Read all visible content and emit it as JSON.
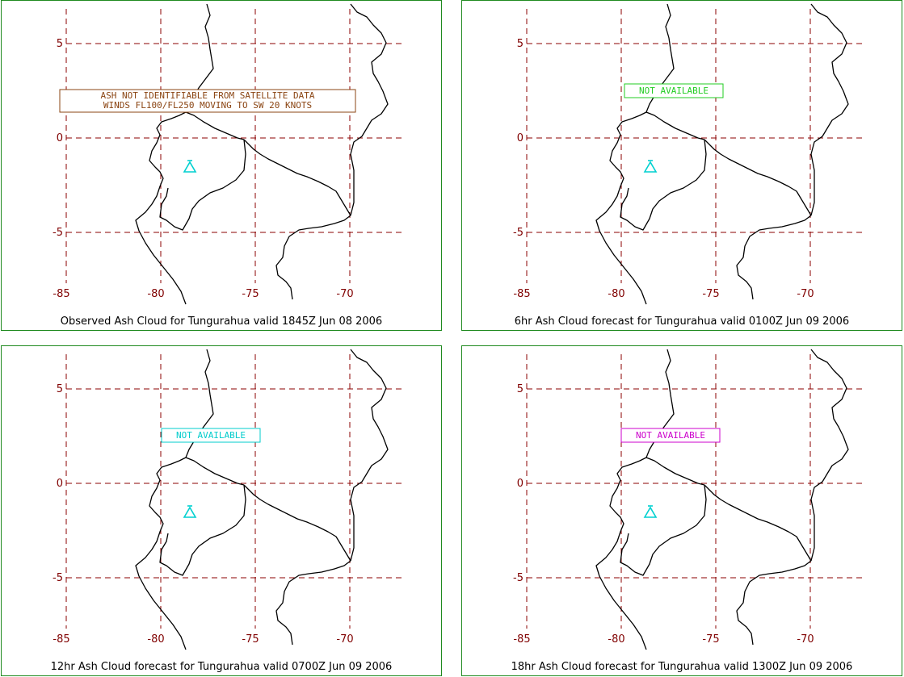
{
  "colors": {
    "grid": "#8b0000",
    "tick_label": "#800000",
    "coastline": "#000000",
    "panel_border": "#1f8a1f",
    "volcano_marker": "#00d0d0"
  },
  "axes": {
    "lat_ticks": [
      "5",
      "0",
      "-5"
    ],
    "lon_ticks": [
      "-85",
      "-80",
      "-75",
      "-70"
    ]
  },
  "volcano": {
    "name": "Tungurahua",
    "lon": -78.44,
    "lat": -1.47,
    "icon": "volcano-icon"
  },
  "panels": [
    {
      "caption": "Observed Ash Cloud for Tungurahua valid 1845Z Jun 08 2006",
      "message_lines": [
        "ASH NOT IDENTIFIABLE FROM SATELLITE DATA",
        "WINDS FL100/FL250 MOVING TO SW 20 KNOTS"
      ],
      "message_color": "#8b4513"
    },
    {
      "caption": "6hr Ash Cloud forecast for Tungurahua valid 0100Z Jun 09 2006",
      "message_lines": [
        "NOT AVAILABLE"
      ],
      "message_color": "#22cc22"
    },
    {
      "caption": "12hr Ash Cloud forecast for Tungurahua valid 0700Z Jun 09 2006",
      "message_lines": [
        "NOT AVAILABLE"
      ],
      "message_color": "#00cccc"
    },
    {
      "caption": "18hr Ash Cloud forecast for Tungurahua valid 1300Z Jun 09 2006",
      "message_lines": [
        "NOT AVAILABLE"
      ],
      "message_color": "#cc00cc"
    }
  ]
}
